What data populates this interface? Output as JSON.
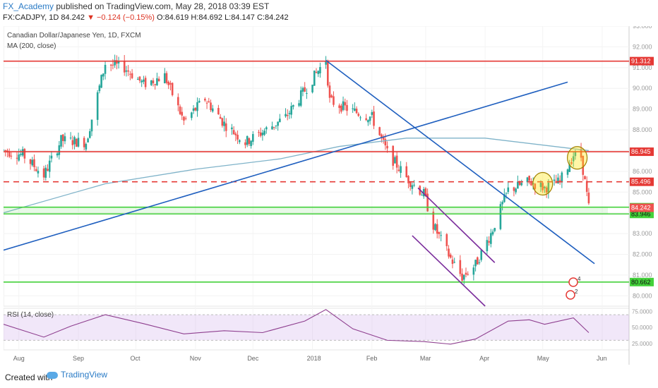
{
  "header": {
    "author": "FX_Academy",
    "published": "published on TradingView.com, May 28, 2018 03:39 EST"
  },
  "symbol_line": {
    "symbol": "FX:CADJPY, 1D",
    "last": "84.242",
    "change": "▼ −0.124 (−0.15%)",
    "open": "O:84.619",
    "high": "H:84.692",
    "low": "L:84.147",
    "close": "C:84.242"
  },
  "legend": {
    "instrument": "Canadian Dollar/Japanese Yen, 1D, FXCM",
    "ma": "MA (200, close)",
    "rsi": "RSI (14, close)"
  },
  "footer": {
    "created": "Created with",
    "brand": "TradingView"
  },
  "colors": {
    "up": "#26a69a",
    "down": "#ef5350",
    "red_line": "#e53935",
    "green_line": "#43d13a",
    "trend": "#1f5fbf",
    "channel": "#7b2d9c",
    "ma": "#7fb3c9",
    "rsi": "#8e3f8f"
  },
  "chart_data": {
    "type": "candlestick",
    "price_axis": {
      "min": 79.5,
      "max": 93,
      "ticks": [
        "93.000",
        "92.000",
        "91.000",
        "90.000",
        "89.000",
        "88.000",
        "87.000",
        "86.000",
        "85.000",
        "84.000",
        "83.000",
        "82.000",
        "81.000",
        "80.000"
      ]
    },
    "time_axis": {
      "ticks": [
        "Aug",
        "Sep",
        "Oct",
        "Nov",
        "Dec",
        "2018",
        "Feb",
        "Mar",
        "Apr",
        "May",
        "Jun"
      ]
    },
    "anchors": [
      [
        "2017-07-24",
        87.0
      ],
      [
        "2017-08-03",
        86.8
      ],
      [
        "2017-08-14",
        85.8
      ],
      [
        "2017-08-23",
        87.5
      ],
      [
        "2017-09-05",
        87.4
      ],
      [
        "2017-09-15",
        91.2
      ],
      [
        "2017-09-25",
        91.0
      ],
      [
        "2017-10-05",
        90.2
      ],
      [
        "2017-10-16",
        90.6
      ],
      [
        "2017-10-26",
        88.4
      ],
      [
        "2017-11-06",
        89.5
      ],
      [
        "2017-11-16",
        88.3
      ],
      [
        "2017-11-27",
        87.4
      ],
      [
        "2017-12-06",
        87.9
      ],
      [
        "2017-12-18",
        88.6
      ],
      [
        "2017-12-28",
        89.9
      ],
      [
        "2018-01-08",
        91.4
      ],
      [
        "2018-01-10",
        89.4
      ],
      [
        "2018-01-22",
        88.9
      ],
      [
        "2018-02-01",
        88.6
      ],
      [
        "2018-02-09",
        86.9
      ],
      [
        "2018-02-19",
        85.7
      ],
      [
        "2018-02-28",
        84.9
      ],
      [
        "2018-03-05",
        83.4
      ],
      [
        "2018-03-14",
        81.8
      ],
      [
        "2018-03-20",
        80.9
      ],
      [
        "2018-03-27",
        81.5
      ],
      [
        "2018-04-04",
        83.0
      ],
      [
        "2018-04-13",
        85.1
      ],
      [
        "2018-04-24",
        85.5
      ],
      [
        "2018-05-02",
        85.2
      ],
      [
        "2018-05-10",
        85.5
      ],
      [
        "2018-05-17",
        86.8
      ],
      [
        "2018-05-21",
        86.7
      ],
      [
        "2018-05-25",
        84.25
      ]
    ],
    "ma200": [
      [
        "2017-07-24",
        84.0
      ],
      [
        "2017-09-15",
        85.4
      ],
      [
        "2017-11-01",
        86.1
      ],
      [
        "2017-12-15",
        86.6
      ],
      [
        "2018-01-15",
        87.2
      ],
      [
        "2018-02-19",
        87.6
      ],
      [
        "2018-04-01",
        87.6
      ],
      [
        "2018-05-25",
        87.0
      ]
    ],
    "horizontal_levels": [
      {
        "value": 91.312,
        "label": "91.312",
        "style": "solid",
        "color": "red"
      },
      {
        "value": 86.945,
        "label": "86.945",
        "style": "solid",
        "color": "red"
      },
      {
        "value": 85.496,
        "label": "85.496",
        "style": "dashed",
        "color": "red"
      },
      {
        "value": 84.271,
        "label": "84.271",
        "style": "solid",
        "color": "green"
      },
      {
        "value": 83.946,
        "label": "83.946",
        "style": "solid",
        "color": "green"
      },
      {
        "value": 80.662,
        "label": "80.662",
        "style": "solid",
        "color": "green"
      }
    ],
    "last_price": {
      "value": 84.242,
      "label": "84.242"
    },
    "trendlines": [
      {
        "from": [
          "2017-07-24",
          82.2
        ],
        "to": [
          "2018-05-14",
          90.3
        ],
        "color": "trend"
      },
      {
        "from": [
          "2018-01-08",
          91.35
        ],
        "to": [
          "2018-05-28",
          81.55
        ],
        "color": "trend"
      },
      {
        "from": [
          "2018-02-25",
          85.2
        ],
        "to": [
          "2018-04-06",
          81.6
        ],
        "color": "channel"
      },
      {
        "from": [
          "2018-02-22",
          82.9
        ],
        "to": [
          "2018-04-01",
          79.5
        ],
        "color": "channel"
      }
    ],
    "circles": [
      [
        "2018-05-01",
        85.4
      ],
      [
        "2018-05-19",
        86.65
      ]
    ],
    "rsi": {
      "ticks": [
        "75.0000",
        "50.0000",
        "25.0000"
      ],
      "levels": [
        70,
        30
      ],
      "values": [
        [
          "2017-07-24",
          55
        ],
        [
          "2017-08-14",
          35
        ],
        [
          "2017-08-28",
          52
        ],
        [
          "2017-09-15",
          70
        ],
        [
          "2017-10-05",
          56
        ],
        [
          "2017-10-26",
          40
        ],
        [
          "2017-11-16",
          45
        ],
        [
          "2017-12-06",
          42
        ],
        [
          "2017-12-28",
          60
        ],
        [
          "2018-01-08",
          78
        ],
        [
          "2018-01-22",
          48
        ],
        [
          "2018-02-09",
          30
        ],
        [
          "2018-02-28",
          28
        ],
        [
          "2018-03-14",
          24
        ],
        [
          "2018-03-27",
          32
        ],
        [
          "2018-04-13",
          60
        ],
        [
          "2018-04-24",
          62
        ],
        [
          "2018-05-02",
          55
        ],
        [
          "2018-05-17",
          65
        ],
        [
          "2018-05-25",
          42
        ]
      ]
    }
  }
}
